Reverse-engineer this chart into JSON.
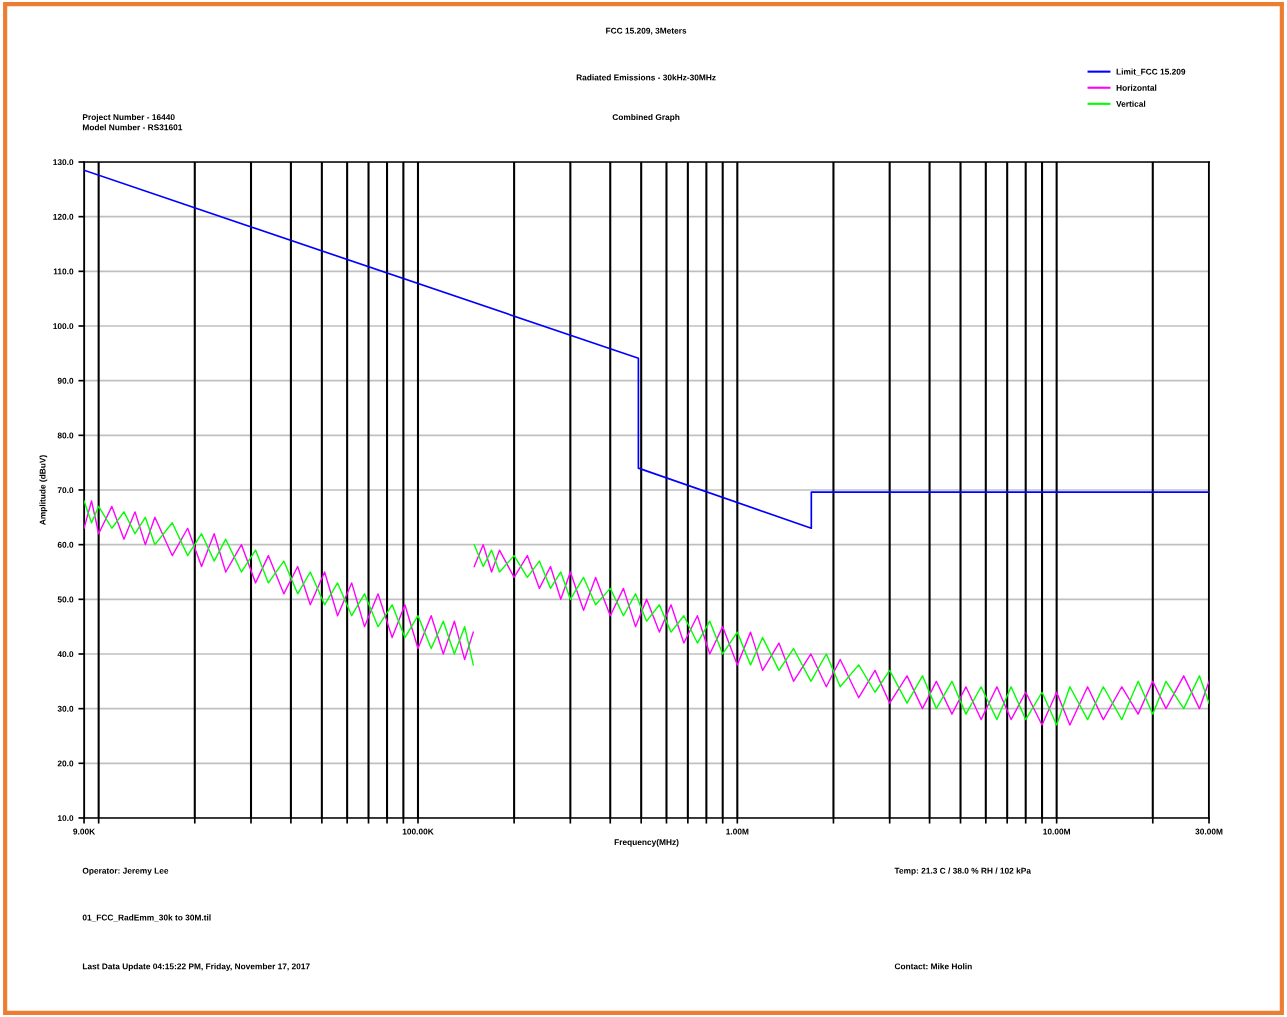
{
  "chart_data": {
    "type": "line",
    "title": "FCC 15.209, 3Meters",
    "subtitle": "Radiated Emissions - 30kHz-30MHz",
    "xlabel": "Frequency(MHz)",
    "ylabel": "Amplitude (dBuV)",
    "log": "x",
    "xlim": [
      9000,
      30000000
    ],
    "xticks": [
      {
        "value": 9000,
        "label": "9.00K"
      },
      {
        "value": 10000,
        "label": null
      },
      {
        "value": 20000,
        "label": null
      },
      {
        "value": 30000,
        "label": null
      },
      {
        "value": 40000,
        "label": null
      },
      {
        "value": 50000,
        "label": null
      },
      {
        "value": 60000,
        "label": null
      },
      {
        "value": 70000,
        "label": null
      },
      {
        "value": 80000,
        "label": null
      },
      {
        "value": 90000,
        "label": null
      },
      {
        "value": 100000,
        "label": "100.00K"
      },
      {
        "value": 200000,
        "label": null
      },
      {
        "value": 300000,
        "label": null
      },
      {
        "value": 400000,
        "label": null
      },
      {
        "value": 500000,
        "label": null
      },
      {
        "value": 600000,
        "label": null
      },
      {
        "value": 700000,
        "label": null
      },
      {
        "value": 800000,
        "label": null
      },
      {
        "value": 900000,
        "label": null
      },
      {
        "value": 1000000,
        "label": "1.00M"
      },
      {
        "value": 2000000,
        "label": null
      },
      {
        "value": 3000000,
        "label": null
      },
      {
        "value": 4000000,
        "label": null
      },
      {
        "value": 5000000,
        "label": null
      },
      {
        "value": 6000000,
        "label": null
      },
      {
        "value": 7000000,
        "label": null
      },
      {
        "value": 8000000,
        "label": null
      },
      {
        "value": 9000000,
        "label": null
      },
      {
        "value": 10000000,
        "label": "10.00M"
      },
      {
        "value": 20000000,
        "label": null
      },
      {
        "value": 30000000,
        "label": "30.00M"
      }
    ],
    "ylim": [
      10,
      130
    ],
    "yticks": [
      {
        "value": 10,
        "label": "10.0"
      },
      {
        "value": 20,
        "label": "20.0"
      },
      {
        "value": 30,
        "label": "30.0"
      },
      {
        "value": 40,
        "label": "40.0"
      },
      {
        "value": 50,
        "label": "50.0"
      },
      {
        "value": 60,
        "label": "60.0"
      },
      {
        "value": 70,
        "label": "70.0"
      },
      {
        "value": 80,
        "label": "80.0"
      },
      {
        "value": 90,
        "label": "90.0"
      },
      {
        "value": 100,
        "label": "100.0"
      },
      {
        "value": 110,
        "label": "110.0"
      },
      {
        "value": 120,
        "label": "120.0"
      },
      {
        "value": 130,
        "label": "130.0"
      }
    ],
    "grid": true,
    "legend": "top right",
    "marker": "none",
    "line_style": "solid",
    "annotations": [
      "Combined Graph",
      "Project Number - 16440",
      "Model Number - RS31601",
      "Operator: Jeremy Lee",
      "01_FCC_RadEmm_30k to 30M.til",
      "Last Data Update 04:15:22 PM, Friday, November 17, 2017",
      "Temp: 21.3 C / 38.0 % RH / 102 kPa",
      "Contact: Mike Holin"
    ],
    "series": [
      {
        "name": "Limit_FCC 15.209",
        "color": "#0000ff",
        "x": [
          9000,
          490000,
          490000,
          1705000,
          1705000,
          30000000
        ],
        "values": [
          128.5,
          94.1,
          74.0,
          63.0,
          69.6,
          69.6
        ]
      },
      {
        "name": "Horizontal",
        "color": "#ff00ff",
        "x": [
          9000,
          9500,
          10000,
          11000,
          12000,
          13000,
          14000,
          15000,
          17000,
          19000,
          21000,
          23000,
          25000,
          28000,
          31000,
          34000,
          38000,
          42000,
          46000,
          51000,
          56000,
          62000,
          68000,
          75000,
          83000,
          91000,
          100000,
          110000,
          120000,
          130000,
          140000,
          149000,
          149500,
          150000,
          160000,
          170000,
          180000,
          200000,
          220000,
          240000,
          260000,
          280000,
          300000,
          330000,
          360000,
          400000,
          440000,
          480000,
          520000,
          570000,
          620000,
          680000,
          750000,
          820000,
          900000,
          1000000,
          1100000,
          1200000,
          1350000,
          1500000,
          1700000,
          1900000,
          2100000,
          2400000,
          2700000,
          3000000,
          3400000,
          3800000,
          4200000,
          4700000,
          5200000,
          5800000,
          6500000,
          7200000,
          8000000,
          9000000,
          10000000,
          11000000,
          12500000,
          14000000,
          16000000,
          18000000,
          20000000,
          22000000,
          25000000,
          28000000,
          30000000
        ],
        "values": [
          63,
          68,
          62,
          67,
          61,
          66,
          60,
          65,
          58,
          63,
          56,
          62,
          55,
          60,
          53,
          58,
          51,
          56,
          49,
          55,
          47,
          53,
          45,
          51,
          43,
          49,
          41,
          47,
          40,
          46,
          39,
          44,
          null,
          56,
          60,
          55,
          59,
          54,
          58,
          52,
          56,
          50,
          55,
          48,
          54,
          47,
          52,
          45,
          50,
          44,
          49,
          42,
          47,
          40,
          45,
          38,
          44,
          37,
          42,
          35,
          40,
          34,
          39,
          32,
          37,
          31,
          36,
          30,
          35,
          29,
          34,
          28,
          34,
          28,
          33,
          27,
          33,
          27,
          34,
          28,
          34,
          29,
          35,
          30,
          36,
          30,
          35
        ]
      },
      {
        "name": "Vertical",
        "color": "#00ff00",
        "x": [
          9000,
          9500,
          10000,
          11000,
          12000,
          13000,
          14000,
          15000,
          17000,
          19000,
          21000,
          23000,
          25000,
          28000,
          31000,
          34000,
          38000,
          42000,
          46000,
          51000,
          56000,
          62000,
          68000,
          75000,
          83000,
          91000,
          100000,
          110000,
          120000,
          130000,
          140000,
          149000,
          149500,
          150000,
          160000,
          170000,
          180000,
          200000,
          220000,
          240000,
          260000,
          280000,
          300000,
          330000,
          360000,
          400000,
          440000,
          480000,
          520000,
          570000,
          620000,
          680000,
          750000,
          820000,
          900000,
          1000000,
          1100000,
          1200000,
          1350000,
          1500000,
          1700000,
          1900000,
          2100000,
          2400000,
          2700000,
          3000000,
          3400000,
          3800000,
          4200000,
          4700000,
          5200000,
          5800000,
          6500000,
          7200000,
          8000000,
          9000000,
          10000000,
          11000000,
          12500000,
          14000000,
          16000000,
          18000000,
          20000000,
          22000000,
          25000000,
          28000000,
          30000000
        ],
        "values": [
          68,
          64,
          67,
          63,
          66,
          62,
          65,
          60,
          64,
          58,
          62,
          57,
          61,
          55,
          59,
          53,
          57,
          51,
          55,
          49,
          53,
          47,
          51,
          45,
          49,
          43,
          47,
          41,
          46,
          40,
          45,
          38,
          null,
          60,
          56,
          59,
          55,
          58,
          54,
          57,
          52,
          55,
          50,
          54,
          49,
          52,
          47,
          51,
          46,
          49,
          44,
          47,
          42,
          46,
          40,
          44,
          38,
          43,
          37,
          41,
          35,
          40,
          34,
          38,
          33,
          37,
          31,
          36,
          30,
          35,
          29,
          34,
          28,
          34,
          28,
          33,
          27,
          34,
          28,
          34,
          28,
          35,
          29,
          35,
          30,
          36,
          31
        ]
      }
    ]
  }
}
